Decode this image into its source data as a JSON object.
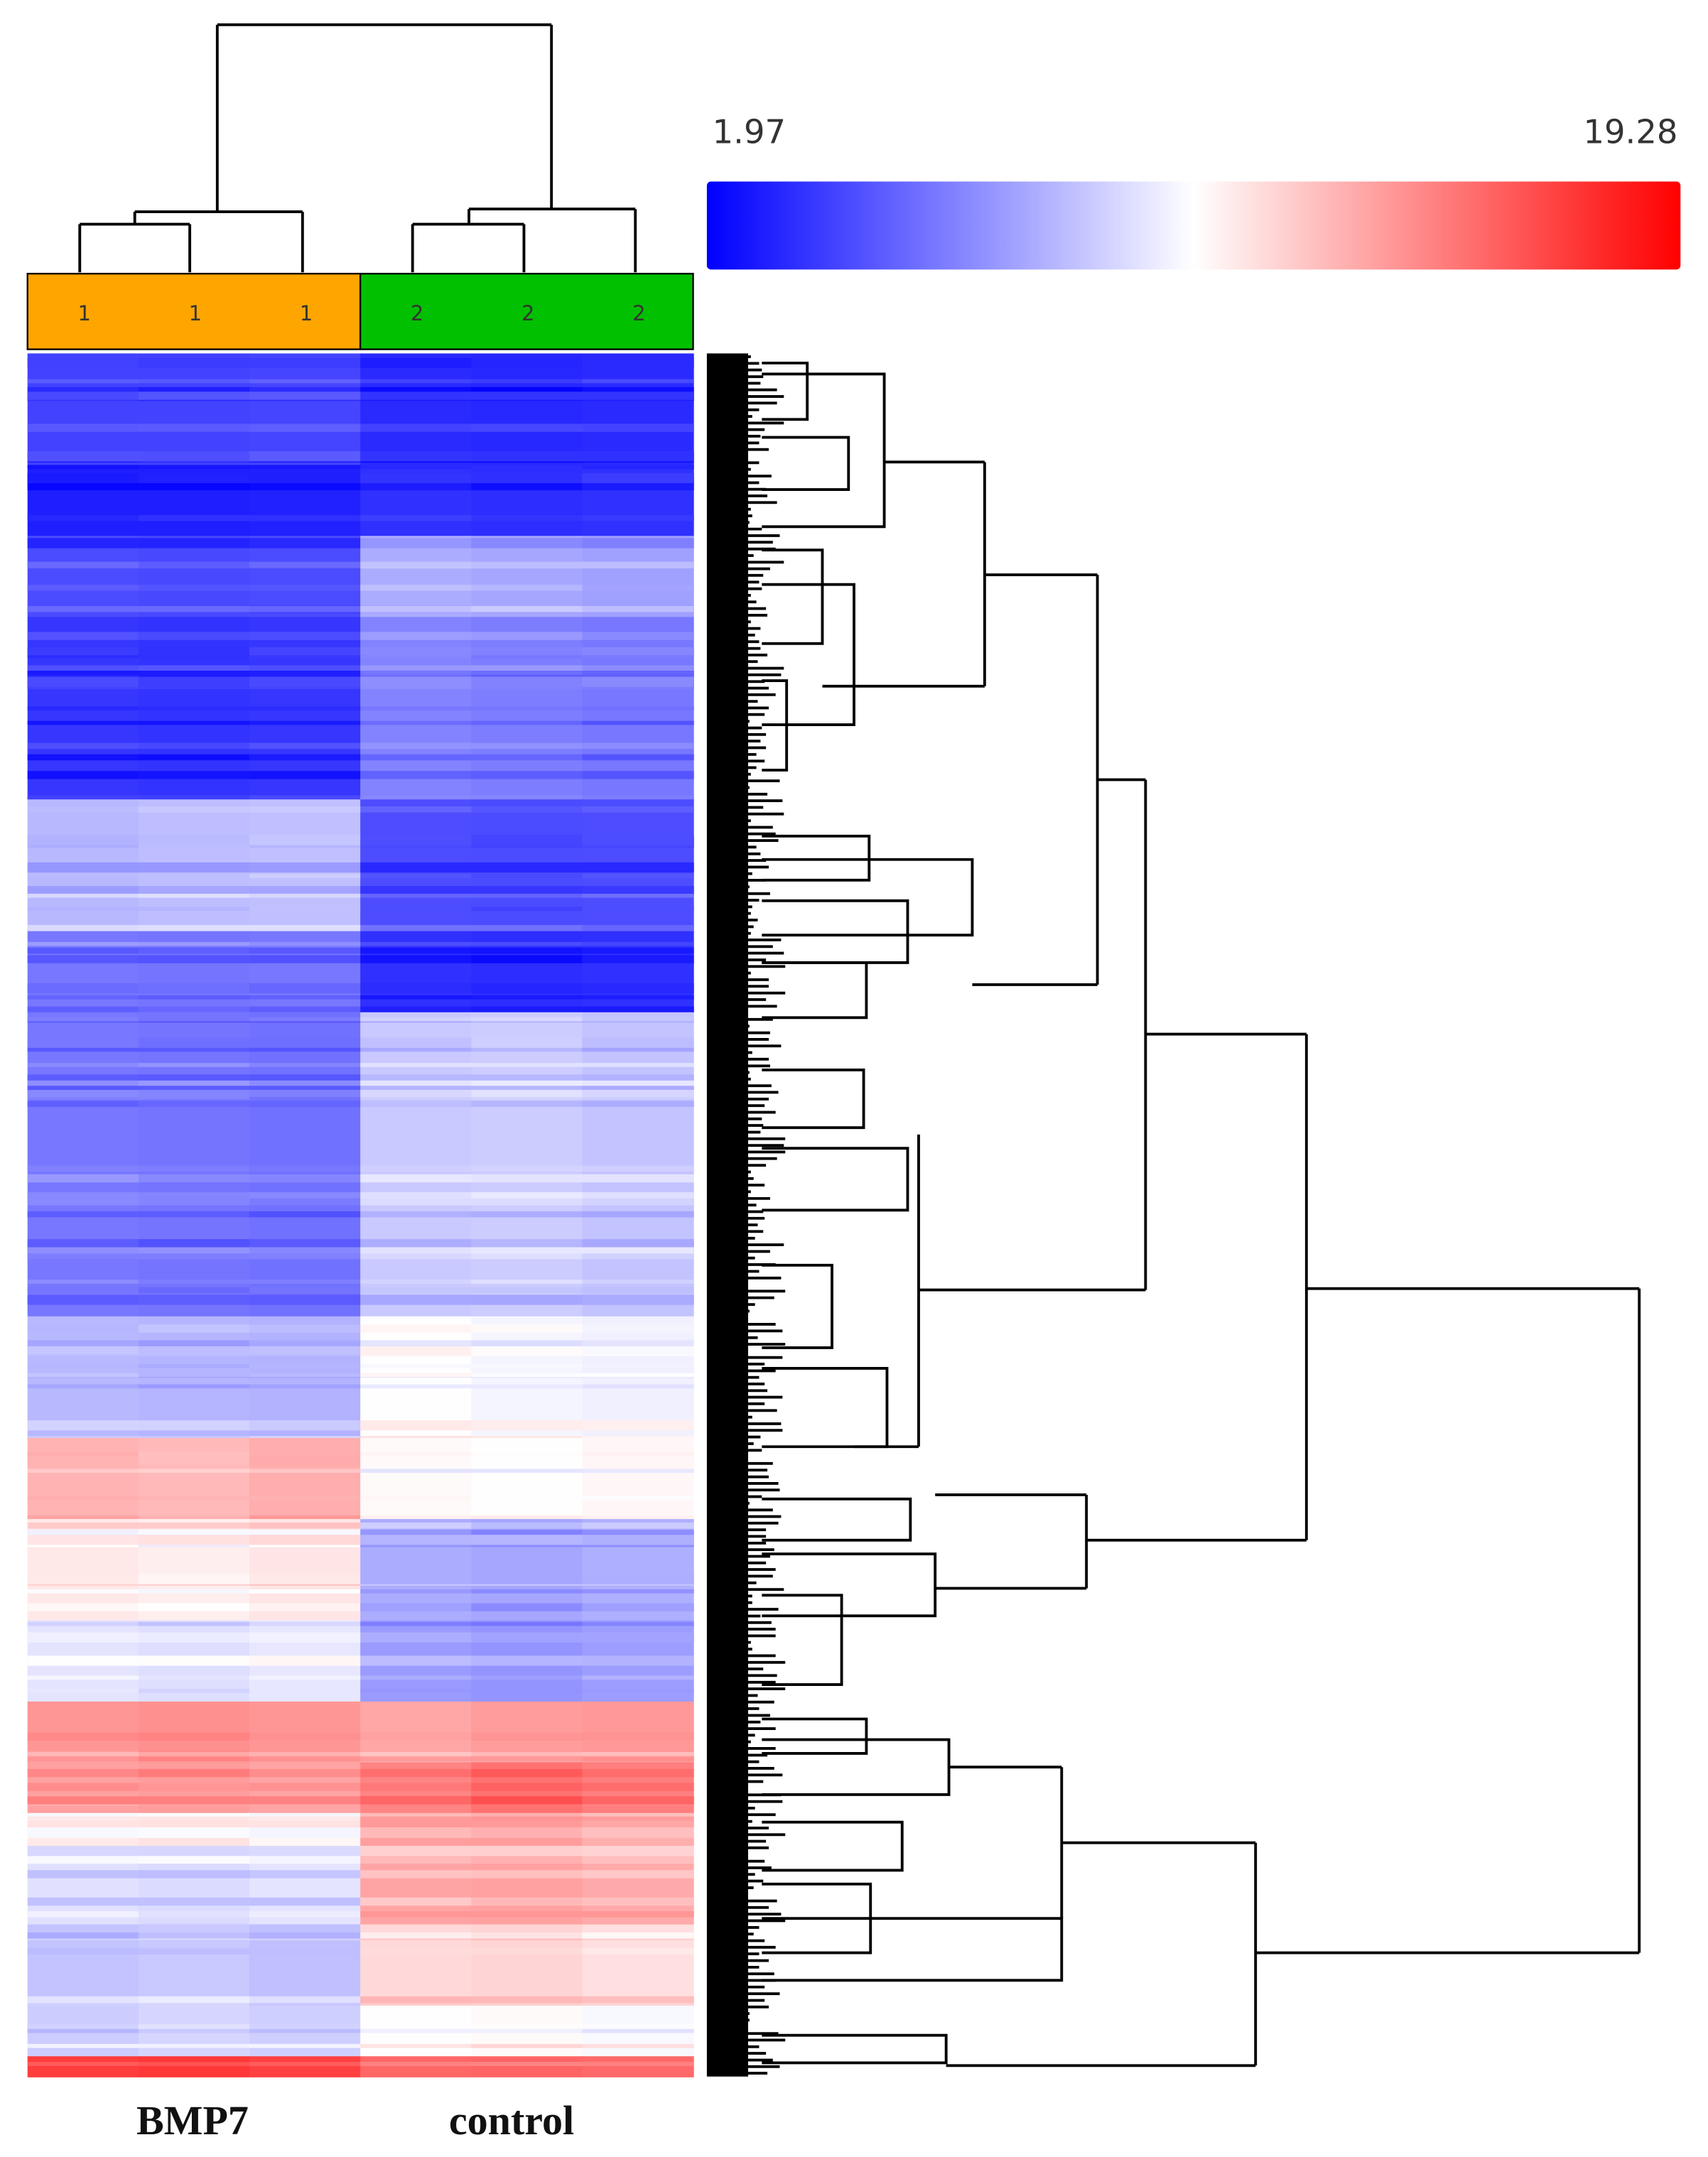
{
  "chart_data": {
    "type": "heatmap",
    "title": "",
    "color_scale": {
      "min": 1.97,
      "max": 19.28,
      "min_label": "1.97",
      "max_label": "19.28",
      "colors": [
        "#0000ff",
        "#ffffff",
        "#ff0000"
      ]
    },
    "groups": [
      {
        "name": "BMP7",
        "code": "1",
        "color": "#ffa500",
        "columns": 3
      },
      {
        "name": "control",
        "code": "2",
        "color": "#00c000",
        "columns": 3
      }
    ],
    "column_group_codes": [
      "1",
      "1",
      "1",
      "2",
      "2",
      "2"
    ],
    "row_blocks": [
      {
        "rows": 55,
        "values": [
          4.2,
          4.2,
          4.3,
          3.4,
          3.3,
          3.4
        ]
      },
      {
        "rows": 35,
        "values": [
          3.0,
          3.0,
          3.1,
          3.6,
          3.5,
          3.6
        ]
      },
      {
        "rows": 40,
        "values": [
          4.5,
          4.4,
          4.5,
          7.8,
          7.6,
          7.4
        ]
      },
      {
        "rows": 90,
        "values": [
          3.8,
          3.7,
          3.8,
          6.4,
          6.2,
          6.0
        ]
      },
      {
        "rows": 65,
        "values": [
          8.2,
          8.4,
          8.5,
          4.6,
          4.5,
          4.6
        ]
      },
      {
        "rows": 40,
        "values": [
          6.0,
          5.9,
          6.0,
          3.6,
          3.5,
          3.6
        ]
      },
      {
        "rows": 150,
        "values": [
          6.0,
          5.9,
          5.8,
          8.8,
          8.9,
          8.6
        ]
      },
      {
        "rows": 60,
        "values": [
          8.2,
          8.1,
          8.0,
          10.6,
          10.3,
          10.1
        ]
      },
      {
        "rows": 40,
        "values": [
          13.2,
          13.0,
          13.4,
          10.8,
          10.6,
          10.9
        ]
      },
      {
        "rows": 50,
        "values": [
          11.4,
          11.2,
          11.5,
          7.8,
          7.6,
          7.9
        ]
      },
      {
        "rows": 40,
        "values": [
          9.7,
          9.5,
          9.8,
          7.2,
          7.0,
          7.3
        ]
      },
      {
        "rows": 30,
        "values": [
          14.2,
          14.4,
          14.2,
          13.6,
          14.0,
          14.1
        ]
      },
      {
        "rows": 25,
        "values": [
          13.8,
          14.0,
          13.7,
          14.8,
          15.4,
          15.0
        ]
      },
      {
        "rows": 25,
        "values": [
          10.4,
          10.5,
          10.3,
          13.0,
          13.3,
          12.8
        ]
      },
      {
        "rows": 30,
        "values": [
          9.6,
          9.4,
          9.7,
          13.7,
          13.8,
          13.5
        ]
      },
      {
        "rows": 40,
        "values": [
          8.6,
          8.8,
          8.5,
          11.9,
          12.1,
          11.7
        ]
      },
      {
        "rows": 25,
        "values": [
          8.9,
          9.2,
          9.0,
          10.6,
          10.8,
          10.4
        ]
      },
      {
        "rows": 10,
        "values": [
          17.2,
          17.4,
          17.1,
          15.8,
          15.9,
          15.7
        ]
      }
    ],
    "column_dendrogram": "((1,(1,1)),((2,2),2))",
    "row_dendrogram_clusters": 6,
    "xlabel": "",
    "ylabel": ""
  }
}
